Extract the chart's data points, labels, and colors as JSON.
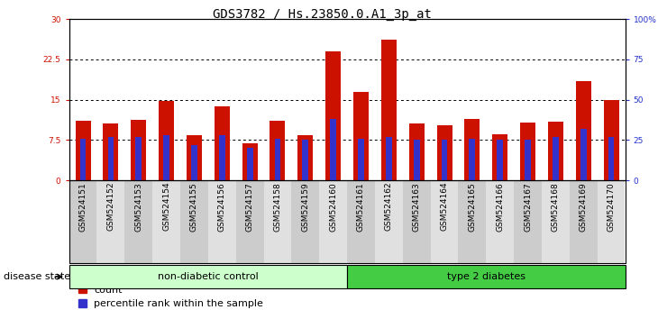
{
  "title": "GDS3782 / Hs.23850.0.A1_3p_at",
  "samples": [
    "GSM524151",
    "GSM524152",
    "GSM524153",
    "GSM524154",
    "GSM524155",
    "GSM524156",
    "GSM524157",
    "GSM524158",
    "GSM524159",
    "GSM524160",
    "GSM524161",
    "GSM524162",
    "GSM524163",
    "GSM524164",
    "GSM524165",
    "GSM524166",
    "GSM524167",
    "GSM524168",
    "GSM524169",
    "GSM524170"
  ],
  "count_values": [
    11.0,
    10.6,
    11.2,
    14.7,
    8.4,
    13.7,
    6.9,
    11.0,
    8.4,
    24.0,
    16.4,
    26.2,
    10.6,
    10.2,
    11.4,
    8.6,
    10.8,
    10.9,
    18.4,
    15.0
  ],
  "percentile_values": [
    26,
    27,
    27,
    28,
    22,
    28,
    20,
    26,
    25,
    38,
    26,
    27,
    25,
    25,
    26,
    25,
    25,
    27,
    32,
    27
  ],
  "non_diabetic_count": 10,
  "type2_count": 10,
  "ylim_left": [
    0,
    30
  ],
  "ylim_right": [
    0,
    100
  ],
  "yticks_left": [
    0,
    7.5,
    15,
    22.5,
    30
  ],
  "ytick_labels_left": [
    "0",
    "7.5",
    "15",
    "22.5",
    "30"
  ],
  "yticks_right": [
    0,
    25,
    50,
    75,
    100
  ],
  "ytick_labels_right": [
    "0",
    "25",
    "50",
    "75",
    "100%"
  ],
  "bar_color": "#cc1100",
  "percentile_color": "#3333cc",
  "non_diabetic_color": "#ccffcc",
  "type2_color": "#44cc44",
  "left_axis_color": "#cc1100",
  "right_axis_color": "#2233cc",
  "bar_width": 0.55,
  "blue_bar_width": 0.22,
  "title_fontsize": 10,
  "legend_fontsize": 8,
  "tick_fontsize": 6.5,
  "group_fontsize": 8
}
